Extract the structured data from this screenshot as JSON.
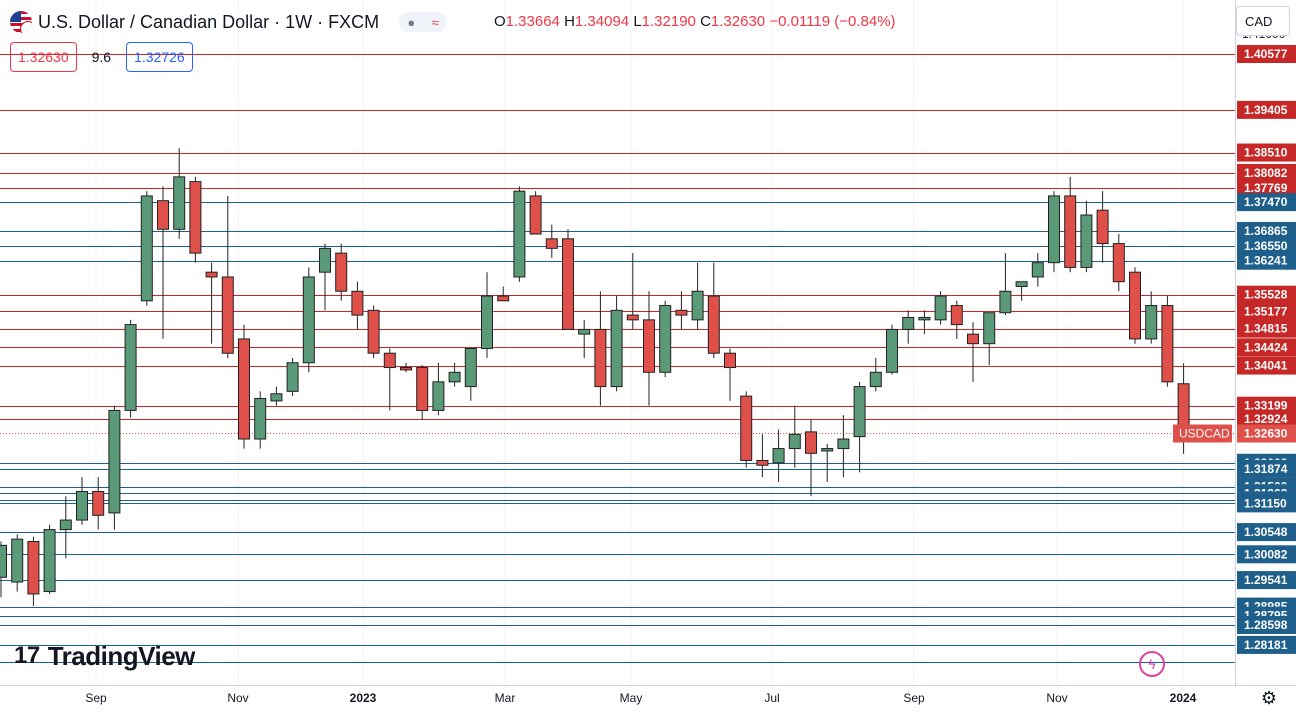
{
  "header": {
    "title": "U.S. Dollar / Canadian Dollar · 1W · FXCM",
    "ohlc": {
      "open_label": "O",
      "open": "1.33664",
      "high_label": "H",
      "high": "1.34094",
      "low_label": "L",
      "low": "1.32190",
      "close_label": "C",
      "close": "1.32630",
      "change": "−0.01119 (−0.84%)"
    },
    "sell_price": "1.32630",
    "spread": "9.6",
    "buy_price": "1.32726",
    "currency_button": "CAD"
  },
  "brand": {
    "logo_text": "TradingView"
  },
  "icons": {
    "settings": "gear-icon",
    "alert": "lightning-icon",
    "visibility": "eye-icon",
    "flag": "us-ca-flag-icon"
  },
  "colors": {
    "up": "#5b9a78",
    "down": "#e0504a",
    "level_red": "#c62828",
    "level_blue": "#1f5f8b"
  },
  "chart_data": {
    "type": "candlestick",
    "symbol_label": "USDCAD",
    "last_price": 1.3263,
    "ylim": [
      1.2734,
      1.4171
    ],
    "x_ticks": [
      "Sep",
      "Nov",
      "2023",
      "Mar",
      "May",
      "Jul",
      "Sep",
      "Nov",
      "2024"
    ],
    "y_ticks": [
      1.41
    ],
    "levels": [
      {
        "value": 1.40577,
        "color": "red"
      },
      {
        "value": 1.39405,
        "color": "red"
      },
      {
        "value": 1.3851,
        "color": "red"
      },
      {
        "value": 1.38082,
        "color": "red"
      },
      {
        "value": 1.37769,
        "color": "red"
      },
      {
        "value": 1.3747,
        "color": "blue"
      },
      {
        "value": 1.36865,
        "color": "blue"
      },
      {
        "value": 1.3655,
        "color": "blue"
      },
      {
        "value": 1.36241,
        "color": "blue"
      },
      {
        "value": 1.35528,
        "color": "red"
      },
      {
        "value": 1.35177,
        "color": "red"
      },
      {
        "value": 1.34815,
        "color": "red"
      },
      {
        "value": 1.34424,
        "color": "red"
      },
      {
        "value": 1.34041,
        "color": "red"
      },
      {
        "value": 1.33199,
        "color": "red"
      },
      {
        "value": 1.32924,
        "color": "red"
      },
      {
        "value": 1.32002,
        "color": "blue"
      },
      {
        "value": 1.31874,
        "color": "blue"
      },
      {
        "value": 1.315,
        "color": "blue"
      },
      {
        "value": 1.31362,
        "color": "blue"
      },
      {
        "value": 1.31213,
        "color": "blue"
      },
      {
        "value": 1.3115,
        "color": "blue"
      },
      {
        "value": 1.30548,
        "color": "blue"
      },
      {
        "value": 1.30082,
        "color": "blue"
      },
      {
        "value": 1.29541,
        "color": "blue"
      },
      {
        "value": 1.28985,
        "color": "blue"
      },
      {
        "value": 1.28795,
        "color": "blue"
      },
      {
        "value": 1.28598,
        "color": "blue"
      },
      {
        "value": 1.28181,
        "color": "blue"
      },
      {
        "value": 1.27828,
        "color": "blue"
      }
    ],
    "label_levels": [
      1.40577,
      1.39405,
      1.3851,
      1.38082,
      1.37769,
      1.3747,
      1.36865,
      1.3655,
      1.36241,
      1.35528,
      1.35177,
      1.34815,
      1.34424,
      1.34041,
      1.33199,
      1.32924,
      1.32002,
      1.31874,
      1.315,
      1.31362,
      1.31213,
      1.3115,
      1.30548,
      1.30082,
      1.29541,
      1.28985,
      1.28795,
      1.28598,
      1.28181
    ],
    "candles": [
      {
        "o": 1.296,
        "h": 1.3035,
        "l": 1.2918,
        "c": 1.3027
      },
      {
        "o": 1.295,
        "h": 1.305,
        "l": 1.293,
        "c": 1.304
      },
      {
        "o": 1.3035,
        "h": 1.3045,
        "l": 1.29,
        "c": 1.2925
      },
      {
        "o": 1.293,
        "h": 1.307,
        "l": 1.2925,
        "c": 1.306
      },
      {
        "o": 1.306,
        "h": 1.313,
        "l": 1.3,
        "c": 1.308
      },
      {
        "o": 1.308,
        "h": 1.317,
        "l": 1.307,
        "c": 1.314
      },
      {
        "o": 1.314,
        "h": 1.317,
        "l": 1.306,
        "c": 1.309
      },
      {
        "o": 1.3095,
        "h": 1.332,
        "l": 1.306,
        "c": 1.331
      },
      {
        "o": 1.331,
        "h": 1.35,
        "l": 1.3295,
        "c": 1.349
      },
      {
        "o": 1.354,
        "h": 1.377,
        "l": 1.353,
        "c": 1.376
      },
      {
        "o": 1.375,
        "h": 1.378,
        "l": 1.346,
        "c": 1.369
      },
      {
        "o": 1.369,
        "h": 1.386,
        "l": 1.367,
        "c": 1.38
      },
      {
        "o": 1.379,
        "h": 1.38,
        "l": 1.362,
        "c": 1.364
      },
      {
        "o": 1.36,
        "h": 1.362,
        "l": 1.345,
        "c": 1.359
      },
      {
        "o": 1.359,
        "h": 1.376,
        "l": 1.342,
        "c": 1.343
      },
      {
        "o": 1.346,
        "h": 1.349,
        "l": 1.323,
        "c": 1.325
      },
      {
        "o": 1.325,
        "h": 1.335,
        "l": 1.323,
        "c": 1.3335
      },
      {
        "o": 1.333,
        "h": 1.336,
        "l": 1.332,
        "c": 1.3345
      },
      {
        "o": 1.335,
        "h": 1.342,
        "l": 1.334,
        "c": 1.341
      },
      {
        "o": 1.341,
        "h": 1.361,
        "l": 1.339,
        "c": 1.359
      },
      {
        "o": 1.36,
        "h": 1.366,
        "l": 1.352,
        "c": 1.365
      },
      {
        "o": 1.364,
        "h": 1.366,
        "l": 1.354,
        "c": 1.356
      },
      {
        "o": 1.356,
        "h": 1.358,
        "l": 1.348,
        "c": 1.351
      },
      {
        "o": 1.352,
        "h": 1.353,
        "l": 1.342,
        "c": 1.343
      },
      {
        "o": 1.343,
        "h": 1.344,
        "l": 1.331,
        "c": 1.34
      },
      {
        "o": 1.34,
        "h": 1.341,
        "l": 1.339,
        "c": 1.3395
      },
      {
        "o": 1.34,
        "h": 1.3405,
        "l": 1.329,
        "c": 1.331
      },
      {
        "o": 1.331,
        "h": 1.341,
        "l": 1.33,
        "c": 1.337
      },
      {
        "o": 1.337,
        "h": 1.341,
        "l": 1.336,
        "c": 1.339
      },
      {
        "o": 1.336,
        "h": 1.344,
        "l": 1.333,
        "c": 1.344
      },
      {
        "o": 1.344,
        "h": 1.36,
        "l": 1.342,
        "c": 1.355
      },
      {
        "o": 1.355,
        "h": 1.357,
        "l": 1.354,
        "c": 1.354
      },
      {
        "o": 1.359,
        "h": 1.378,
        "l": 1.358,
        "c": 1.377
      },
      {
        "o": 1.376,
        "h": 1.377,
        "l": 1.368,
        "c": 1.368
      },
      {
        "o": 1.367,
        "h": 1.37,
        "l": 1.363,
        "c": 1.365
      },
      {
        "o": 1.367,
        "h": 1.369,
        "l": 1.348,
        "c": 1.348
      },
      {
        "o": 1.347,
        "h": 1.35,
        "l": 1.342,
        "c": 1.348
      },
      {
        "o": 1.348,
        "h": 1.356,
        "l": 1.332,
        "c": 1.336
      },
      {
        "o": 1.336,
        "h": 1.355,
        "l": 1.335,
        "c": 1.352
      },
      {
        "o": 1.351,
        "h": 1.364,
        "l": 1.348,
        "c": 1.35
      },
      {
        "o": 1.35,
        "h": 1.356,
        "l": 1.332,
        "c": 1.339
      },
      {
        "o": 1.339,
        "h": 1.354,
        "l": 1.338,
        "c": 1.353
      },
      {
        "o": 1.352,
        "h": 1.356,
        "l": 1.348,
        "c": 1.351
      },
      {
        "o": 1.35,
        "h": 1.362,
        "l": 1.348,
        "c": 1.356
      },
      {
        "o": 1.355,
        "h": 1.362,
        "l": 1.342,
        "c": 1.343
      },
      {
        "o": 1.343,
        "h": 1.344,
        "l": 1.333,
        "c": 1.34
      },
      {
        "o": 1.334,
        "h": 1.335,
        "l": 1.319,
        "c": 1.3205
      },
      {
        "o": 1.3205,
        "h": 1.326,
        "l": 1.317,
        "c": 1.3195
      },
      {
        "o": 1.32,
        "h": 1.327,
        "l": 1.316,
        "c": 1.323
      },
      {
        "o": 1.323,
        "h": 1.332,
        "l": 1.319,
        "c": 1.326
      },
      {
        "o": 1.3265,
        "h": 1.329,
        "l": 1.313,
        "c": 1.322
      },
      {
        "o": 1.3225,
        "h": 1.324,
        "l": 1.316,
        "c": 1.323
      },
      {
        "o": 1.323,
        "h": 1.33,
        "l": 1.317,
        "c": 1.325
      },
      {
        "o": 1.3255,
        "h": 1.337,
        "l": 1.318,
        "c": 1.336
      },
      {
        "o": 1.336,
        "h": 1.342,
        "l": 1.335,
        "c": 1.339
      },
      {
        "o": 1.339,
        "h": 1.349,
        "l": 1.3385,
        "c": 1.348
      },
      {
        "o": 1.348,
        "h": 1.352,
        "l": 1.345,
        "c": 1.3505
      },
      {
        "o": 1.35,
        "h": 1.352,
        "l": 1.347,
        "c": 1.3505
      },
      {
        "o": 1.35,
        "h": 1.356,
        "l": 1.349,
        "c": 1.355
      },
      {
        "o": 1.353,
        "h": 1.354,
        "l": 1.346,
        "c": 1.349
      },
      {
        "o": 1.347,
        "h": 1.3495,
        "l": 1.337,
        "c": 1.345
      },
      {
        "o": 1.345,
        "h": 1.3515,
        "l": 1.3405,
        "c": 1.3515
      },
      {
        "o": 1.3515,
        "h": 1.364,
        "l": 1.351,
        "c": 1.356
      },
      {
        "o": 1.357,
        "h": 1.358,
        "l": 1.354,
        "c": 1.358
      },
      {
        "o": 1.359,
        "h": 1.364,
        "l": 1.357,
        "c": 1.362
      },
      {
        "o": 1.362,
        "h": 1.377,
        "l": 1.36,
        "c": 1.376
      },
      {
        "o": 1.376,
        "h": 1.38,
        "l": 1.36,
        "c": 1.361
      },
      {
        "o": 1.361,
        "h": 1.375,
        "l": 1.36,
        "c": 1.372
      },
      {
        "o": 1.373,
        "h": 1.377,
        "l": 1.362,
        "c": 1.366
      },
      {
        "o": 1.366,
        "h": 1.368,
        "l": 1.356,
        "c": 1.358
      },
      {
        "o": 1.36,
        "h": 1.361,
        "l": 1.345,
        "c": 1.346
      },
      {
        "o": 1.346,
        "h": 1.356,
        "l": 1.345,
        "c": 1.353
      },
      {
        "o": 1.353,
        "h": 1.355,
        "l": 1.336,
        "c": 1.337
      },
      {
        "o": 1.3366,
        "h": 1.3409,
        "l": 1.3219,
        "c": 1.3263
      }
    ]
  }
}
